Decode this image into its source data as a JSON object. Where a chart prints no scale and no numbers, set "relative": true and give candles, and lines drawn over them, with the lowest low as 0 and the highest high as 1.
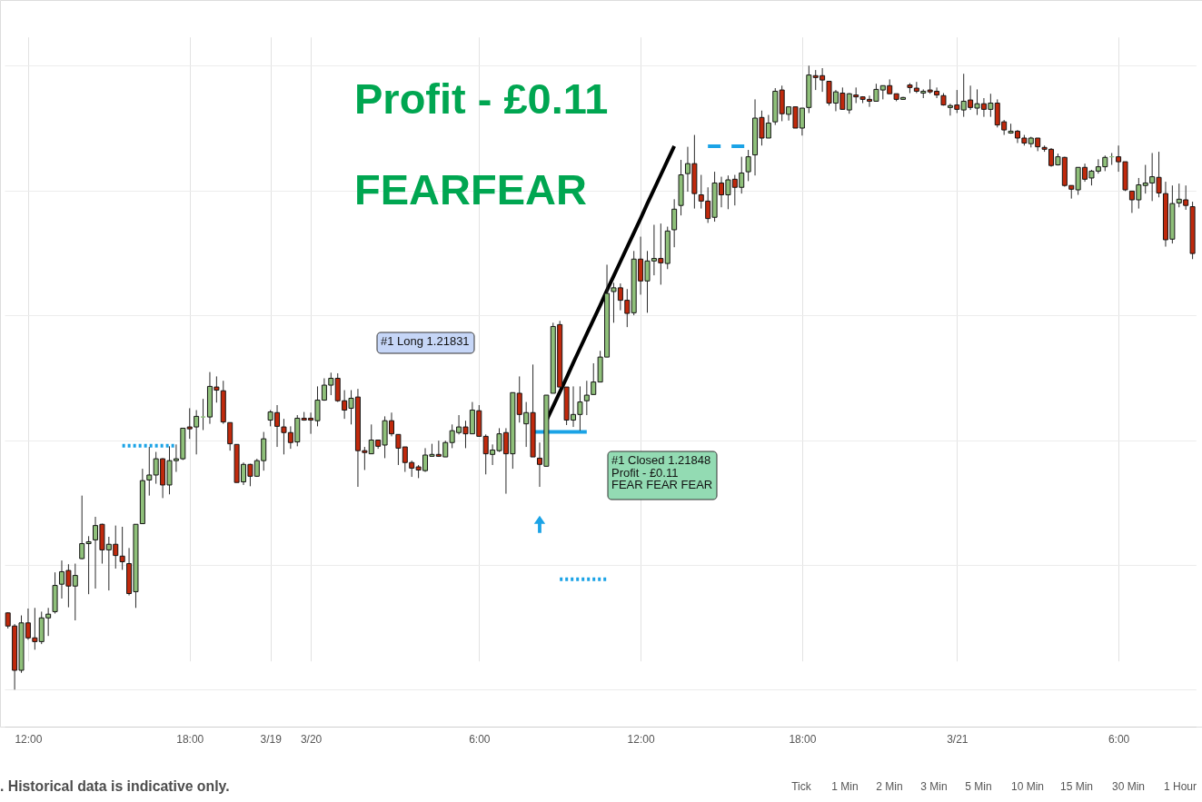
{
  "chart_data": {
    "type": "candlestick",
    "relative": true,
    "grid": true,
    "tick_labels": "x",
    "categories": [
      null,
      null,
      null,
      "12:00",
      null,
      null,
      null,
      null,
      null,
      null,
      null,
      null,
      null,
      null,
      null,
      null,
      null,
      null,
      null,
      null,
      null,
      null,
      null,
      null,
      null,
      null,
      null,
      "18:00",
      null,
      null,
      null,
      null,
      null,
      null,
      null,
      null,
      null,
      null,
      null,
      "3/19",
      null,
      null,
      null,
      null,
      null,
      "3/20",
      null,
      null,
      null,
      null,
      null,
      null,
      null,
      null,
      null,
      null,
      null,
      null,
      null,
      null,
      null,
      null,
      null,
      null,
      null,
      null,
      null,
      null,
      null,
      null,
      "6:00",
      null,
      null,
      null,
      null,
      null,
      null,
      null,
      null,
      null,
      null,
      null,
      null,
      null,
      null,
      null,
      null,
      null,
      null,
      null,
      null,
      null,
      null,
      null,
      "12:00",
      null,
      null,
      null,
      null,
      null,
      null,
      null,
      null,
      null,
      null,
      null,
      null,
      null,
      null,
      null,
      null,
      null,
      null,
      null,
      null,
      null,
      null,
      null,
      "18:00",
      null,
      null,
      null,
      null,
      null,
      null,
      null,
      null,
      null,
      null,
      null,
      null,
      null,
      null,
      null,
      null,
      null,
      null,
      null,
      null,
      null,
      null,
      "3/21",
      null,
      null,
      null,
      null,
      null,
      null,
      null,
      null,
      null,
      null,
      null,
      null,
      null,
      null,
      null,
      null,
      null,
      null,
      null,
      null,
      null,
      null,
      null,
      "6:00",
      null,
      null,
      null,
      null,
      null,
      null,
      null,
      null,
      null,
      null,
      null
    ],
    "ohlc": [
      [
        0.123,
        0.124,
        0.098,
        0.102
      ],
      [
        0.102,
        0.105,
        0.0,
        0.031
      ],
      [
        0.031,
        0.119,
        0.027,
        0.107
      ],
      [
        0.107,
        0.13,
        0.08,
        0.083
      ],
      [
        0.083,
        0.131,
        0.064,
        0.077
      ],
      [
        0.077,
        0.125,
        0.073,
        0.115
      ],
      [
        0.115,
        0.131,
        0.086,
        0.121
      ],
      [
        0.125,
        0.188,
        0.122,
        0.167
      ],
      [
        0.169,
        0.207,
        0.146,
        0.189
      ],
      [
        0.191,
        0.201,
        0.132,
        0.166
      ],
      [
        0.166,
        0.202,
        0.111,
        0.183
      ],
      [
        0.21,
        0.311,
        0.209,
        0.234
      ],
      [
        0.234,
        0.246,
        0.153,
        0.237
      ],
      [
        0.24,
        0.277,
        0.162,
        0.263
      ],
      [
        0.265,
        0.266,
        0.202,
        0.224
      ],
      [
        0.224,
        0.245,
        0.159,
        0.233
      ],
      [
        0.233,
        0.263,
        0.194,
        0.215
      ],
      [
        0.214,
        0.261,
        0.192,
        0.205
      ],
      [
        0.202,
        0.227,
        0.151,
        0.154
      ],
      [
        0.157,
        0.265,
        0.131,
        0.265
      ],
      [
        0.266,
        0.354,
        0.266,
        0.335
      ],
      [
        0.336,
        0.389,
        0.311,
        0.344
      ],
      [
        0.344,
        0.381,
        0.33,
        0.37
      ],
      [
        0.37,
        0.371,
        0.307,
        0.328
      ],
      [
        0.328,
        0.39,
        0.313,
        0.367
      ],
      [
        0.367,
        0.393,
        0.349,
        0.37
      ],
      [
        0.37,
        0.419,
        0.368,
        0.419
      ],
      [
        0.421,
        0.451,
        0.402,
        0.418
      ],
      [
        0.421,
        0.448,
        0.377,
        0.438
      ],
      [
        0.437,
        0.466,
        0.416,
        0.437
      ],
      [
        0.437,
        0.509,
        0.426,
        0.486
      ],
      [
        0.485,
        0.502,
        0.46,
        0.48
      ],
      [
        0.479,
        0.495,
        0.426,
        0.429
      ],
      [
        0.428,
        0.428,
        0.383,
        0.394
      ],
      [
        0.393,
        0.393,
        0.332,
        0.332
      ],
      [
        0.333,
        0.364,
        0.328,
        0.361
      ],
      [
        0.361,
        0.362,
        0.326,
        0.342
      ],
      [
        0.342,
        0.37,
        0.341,
        0.367
      ],
      [
        0.367,
        0.413,
        0.351,
        0.402
      ],
      [
        0.432,
        0.448,
        0.422,
        0.445
      ],
      [
        0.444,
        0.456,
        0.389,
        0.422
      ],
      [
        0.421,
        0.434,
        0.377,
        0.412
      ],
      [
        0.412,
        0.422,
        0.386,
        0.396
      ],
      [
        0.397,
        0.44,
        0.39,
        0.435
      ],
      [
        0.435,
        0.445,
        0.431,
        0.432
      ],
      [
        0.435,
        0.444,
        0.41,
        0.432
      ],
      [
        0.431,
        0.486,
        0.422,
        0.464
      ],
      [
        0.464,
        0.499,
        0.463,
        0.488
      ],
      [
        0.488,
        0.508,
        0.472,
        0.499
      ],
      [
        0.499,
        0.507,
        0.461,
        0.463
      ],
      [
        0.463,
        0.48,
        0.434,
        0.448
      ],
      [
        0.451,
        0.48,
        0.425,
        0.467
      ],
      [
        0.469,
        0.482,
        0.325,
        0.383
      ],
      [
        0.383,
        0.389,
        0.352,
        0.38
      ],
      [
        0.378,
        0.425,
        0.378,
        0.4
      ],
      [
        0.4,
        0.4,
        0.386,
        0.39
      ],
      [
        0.392,
        0.438,
        0.371,
        0.431
      ],
      [
        0.431,
        0.444,
        0.406,
        0.41
      ],
      [
        0.409,
        0.409,
        0.36,
        0.387
      ],
      [
        0.389,
        0.389,
        0.349,
        0.364
      ],
      [
        0.364,
        0.367,
        0.341,
        0.355
      ],
      [
        0.357,
        0.36,
        0.339,
        0.352
      ],
      [
        0.351,
        0.387,
        0.349,
        0.376
      ],
      [
        0.374,
        0.394,
        0.374,
        0.377
      ],
      [
        0.377,
        0.399,
        0.373,
        0.374
      ],
      [
        0.373,
        0.399,
        0.373,
        0.396
      ],
      [
        0.396,
        0.425,
        0.387,
        0.415
      ],
      [
        0.412,
        0.44,
        0.409,
        0.421
      ],
      [
        0.421,
        0.431,
        0.387,
        0.41
      ],
      [
        0.41,
        0.461,
        0.41,
        0.448
      ],
      [
        0.447,
        0.456,
        0.406,
        0.406
      ],
      [
        0.406,
        0.409,
        0.345,
        0.378
      ],
      [
        0.377,
        0.393,
        0.36,
        0.384
      ],
      [
        0.383,
        0.419,
        0.381,
        0.41
      ],
      [
        0.412,
        0.419,
        0.314,
        0.378
      ],
      [
        0.378,
        0.476,
        0.354,
        0.476
      ],
      [
        0.475,
        0.502,
        0.428,
        0.441
      ],
      [
        0.426,
        0.461,
        0.389,
        0.444
      ],
      [
        0.444,
        0.521,
        0.373,
        0.373
      ],
      [
        0.371,
        0.396,
        0.325,
        0.361
      ],
      [
        0.358,
        0.472,
        0.358,
        0.472
      ],
      [
        0.475,
        0.588,
        0.475,
        0.582
      ],
      [
        0.585,
        0.591,
        0.485,
        0.485
      ],
      [
        0.485,
        0.485,
        0.424,
        0.432
      ],
      [
        0.432,
        0.486,
        0.421,
        0.441
      ],
      [
        0.441,
        0.486,
        0.415,
        0.461
      ],
      [
        0.463,
        0.495,
        0.44,
        0.472
      ],
      [
        0.473,
        0.523,
        0.473,
        0.493
      ],
      [
        0.493,
        0.543,
        0.493,
        0.533
      ],
      [
        0.533,
        0.681,
        0.533,
        0.635
      ],
      [
        0.638,
        0.652,
        0.588,
        0.644
      ],
      [
        0.644,
        0.651,
        0.608,
        0.624
      ],
      [
        0.624,
        0.642,
        0.581,
        0.603
      ],
      [
        0.604,
        0.703,
        0.6,
        0.69
      ],
      [
        0.69,
        0.726,
        0.633,
        0.655
      ],
      [
        0.655,
        0.703,
        0.604,
        0.687
      ],
      [
        0.687,
        0.745,
        0.664,
        0.691
      ],
      [
        0.691,
        0.747,
        0.649,
        0.684
      ],
      [
        0.683,
        0.742,
        0.674,
        0.735
      ],
      [
        0.737,
        0.786,
        0.709,
        0.77
      ],
      [
        0.776,
        0.849,
        0.76,
        0.825
      ],
      [
        0.827,
        0.87,
        0.798,
        0.843
      ],
      [
        0.843,
        0.889,
        0.771,
        0.795
      ],
      [
        0.793,
        0.825,
        0.771,
        0.783
      ],
      [
        0.783,
        0.805,
        0.748,
        0.755
      ],
      [
        0.757,
        0.83,
        0.75,
        0.812
      ],
      [
        0.812,
        0.822,
        0.773,
        0.793
      ],
      [
        0.793,
        0.824,
        0.77,
        0.817
      ],
      [
        0.818,
        0.825,
        0.776,
        0.805
      ],
      [
        0.805,
        0.854,
        0.795,
        0.828
      ],
      [
        0.83,
        0.865,
        0.815,
        0.854
      ],
      [
        0.857,
        0.946,
        0.824,
        0.916
      ],
      [
        0.917,
        0.928,
        0.872,
        0.884
      ],
      [
        0.884,
        0.921,
        0.884,
        0.908
      ],
      [
        0.91,
        0.964,
        0.905,
        0.959
      ],
      [
        0.961,
        0.968,
        0.911,
        0.923
      ],
      [
        0.922,
        0.934,
        0.912,
        0.934
      ],
      [
        0.934,
        0.934,
        0.9,
        0.9
      ],
      [
        0.9,
        0.932,
        0.888,
        0.932
      ],
      [
        0.933,
        1.0,
        0.924,
        0.985
      ],
      [
        0.984,
        0.993,
        0.961,
        0.981
      ],
      [
        0.984,
        0.996,
        0.958,
        0.977
      ],
      [
        0.975,
        0.975,
        0.936,
        0.94
      ],
      [
        0.94,
        0.961,
        0.927,
        0.958
      ],
      [
        0.956,
        0.965,
        0.93,
        0.93
      ],
      [
        0.929,
        0.956,
        0.923,
        0.955
      ],
      [
        0.953,
        0.965,
        0.94,
        0.95
      ],
      [
        0.95,
        0.951,
        0.94,
        0.946
      ],
      [
        0.946,
        0.952,
        0.934,
        0.943
      ],
      [
        0.943,
        0.971,
        0.943,
        0.962
      ],
      [
        0.961,
        0.968,
        0.946,
        0.968
      ],
      [
        0.968,
        0.978,
        0.955,
        0.955
      ],
      [
        0.955,
        0.955,
        0.943,
        0.946
      ],
      [
        0.946,
        0.95,
        0.946,
        0.949
      ],
      [
        0.969,
        0.972,
        0.956,
        0.965
      ],
      [
        0.964,
        0.974,
        0.956,
        0.959
      ],
      [
        0.956,
        0.962,
        0.948,
        0.959
      ],
      [
        0.961,
        0.978,
        0.955,
        0.958
      ],
      [
        0.959,
        0.965,
        0.948,
        0.953
      ],
      [
        0.952,
        0.956,
        0.936,
        0.937
      ],
      [
        0.933,
        0.939,
        0.92,
        0.936
      ],
      [
        0.937,
        0.961,
        0.924,
        0.93
      ],
      [
        0.929,
        0.987,
        0.918,
        0.943
      ],
      [
        0.945,
        0.968,
        0.929,
        0.933
      ],
      [
        0.932,
        0.962,
        0.921,
        0.939
      ],
      [
        0.939,
        0.948,
        0.918,
        0.93
      ],
      [
        0.93,
        0.955,
        0.918,
        0.94
      ],
      [
        0.94,
        0.946,
        0.901,
        0.905
      ],
      [
        0.91,
        0.913,
        0.889,
        0.897
      ],
      [
        0.892,
        0.907,
        0.891,
        0.895
      ],
      [
        0.895,
        0.897,
        0.876,
        0.884
      ],
      [
        0.884,
        0.889,
        0.872,
        0.876
      ],
      [
        0.875,
        0.886,
        0.869,
        0.884
      ],
      [
        0.884,
        0.884,
        0.863,
        0.87
      ],
      [
        0.869,
        0.872,
        0.862,
        0.866
      ],
      [
        0.866,
        0.868,
        0.838,
        0.84
      ],
      [
        0.841,
        0.859,
        0.84,
        0.854
      ],
      [
        0.853,
        0.854,
        0.806,
        0.808
      ],
      [
        0.808,
        0.808,
        0.787,
        0.802
      ],
      [
        0.801,
        0.837,
        0.793,
        0.837
      ],
      [
        0.837,
        0.843,
        0.814,
        0.818
      ],
      [
        0.82,
        0.833,
        0.808,
        0.831
      ],
      [
        0.831,
        0.85,
        0.827,
        0.838
      ],
      [
        0.838,
        0.856,
        0.831,
        0.853
      ],
      [
        0.854,
        0.86,
        0.841,
        0.854
      ],
      [
        0.854,
        0.872,
        0.83,
        0.846
      ],
      [
        0.846,
        0.846,
        0.799,
        0.801
      ],
      [
        0.799,
        0.799,
        0.764,
        0.785
      ],
      [
        0.785,
        0.82,
        0.771,
        0.809
      ],
      [
        0.808,
        0.841,
        0.795,
        0.812
      ],
      [
        0.812,
        0.86,
        0.783,
        0.822
      ],
      [
        0.821,
        0.862,
        0.789,
        0.796
      ],
      [
        0.795,
        0.814,
        0.71,
        0.721
      ],
      [
        0.722,
        0.808,
        0.715,
        0.779
      ],
      [
        0.78,
        0.811,
        0.773,
        0.786
      ],
      [
        0.785,
        0.808,
        0.769,
        0.776
      ],
      [
        0.774,
        0.782,
        0.69,
        0.699
      ]
    ],
    "colors": [
      "#c0290c",
      "#c0290c",
      "#8fc07a",
      "#c0290c",
      "#c0290c",
      "#8fc07a",
      "#8fc07a",
      "#8fc07a",
      "#8fc07a",
      "#c0290c",
      "#8fc07a",
      "#8fc07a",
      "#8fc07a",
      "#8fc07a",
      "#c0290c",
      "#8fc07a",
      "#c0290c",
      "#c0290c",
      "#c0290c",
      "#8fc07a",
      "#8fc07a",
      "#8fc07a",
      "#8fc07a",
      "#c0290c",
      "#8fc07a",
      "#8fc07a",
      "#8fc07a",
      "#c0290c",
      "#8fc07a",
      "#8fc07a",
      "#8fc07a",
      "#c0290c",
      "#c0290c",
      "#c0290c",
      "#c0290c",
      "#8fc07a",
      "#c0290c",
      "#8fc07a",
      "#8fc07a",
      "#8fc07a",
      "#c0290c",
      "#c0290c",
      "#c0290c",
      "#8fc07a",
      "#c0290c",
      "#c0290c",
      "#8fc07a",
      "#8fc07a",
      "#8fc07a",
      "#c0290c",
      "#c0290c",
      "#8fc07a",
      "#c0290c",
      "#c0290c",
      "#8fc07a",
      "#c0290c",
      "#8fc07a",
      "#c0290c",
      "#c0290c",
      "#c0290c",
      "#c0290c",
      "#c0290c",
      "#8fc07a",
      "#8fc07a",
      "#c0290c",
      "#8fc07a",
      "#8fc07a",
      "#8fc07a",
      "#c0290c",
      "#8fc07a",
      "#c0290c",
      "#c0290c",
      "#8fc07a",
      "#8fc07a",
      "#c0290c",
      "#8fc07a",
      "#c0290c",
      "#8fc07a",
      "#c0290c",
      "#c0290c",
      "#8fc07a",
      "#8fc07a",
      "#c0290c",
      "#c0290c",
      "#8fc07a",
      "#8fc07a",
      "#8fc07a",
      "#8fc07a",
      "#8fc07a",
      "#8fc07a",
      "#8fc07a",
      "#c0290c",
      "#c0290c",
      "#8fc07a",
      "#c0290c",
      "#8fc07a",
      "#8fc07a",
      "#c0290c",
      "#8fc07a",
      "#8fc07a",
      "#8fc07a",
      "#8fc07a",
      "#c0290c",
      "#c0290c",
      "#c0290c",
      "#8fc07a",
      "#c0290c",
      "#8fc07a",
      "#c0290c",
      "#8fc07a",
      "#8fc07a",
      "#8fc07a",
      "#c0290c",
      "#8fc07a",
      "#8fc07a",
      "#c0290c",
      "#8fc07a",
      "#c0290c",
      "#8fc07a",
      "#8fc07a",
      "#c0290c",
      "#c0290c",
      "#c0290c",
      "#8fc07a",
      "#c0290c",
      "#8fc07a",
      "#c0290c",
      "#c0290c",
      "#c0290c",
      "#8fc07a",
      "#8fc07a",
      "#c0290c",
      "#c0290c",
      "#8fc07a",
      "#c0290c",
      "#c0290c",
      "#8fc07a",
      "#c0290c",
      "#c0290c",
      "#c0290c",
      "#8fc07a",
      "#c0290c",
      "#8fc07a",
      "#c0290c",
      "#8fc07a",
      "#c0290c",
      "#8fc07a",
      "#c0290c",
      "#c0290c",
      "#8fc07a",
      "#c0290c",
      "#c0290c",
      "#8fc07a",
      "#c0290c",
      "#c0290c",
      "#c0290c",
      "#8fc07a",
      "#c0290c",
      "#c0290c",
      "#8fc07a",
      "#c0290c",
      "#8fc07a",
      "#8fc07a",
      "#8fc07a",
      "#8fc07a",
      "#c0290c",
      "#c0290c",
      "#c0290c",
      "#8fc07a",
      "#8fc07a",
      "#8fc07a",
      "#c0290c",
      "#c0290c",
      "#8fc07a",
      "#8fc07a",
      "#c0290c",
      "#c0290c"
    ],
    "series": [
      {
        "type": "line",
        "color": "#000000",
        "values": [
          null,
          null,
          null,
          null,
          null,
          null,
          null,
          null,
          null,
          null,
          null,
          null,
          null,
          null,
          null,
          null,
          null,
          null,
          null,
          null,
          null,
          null,
          null,
          null,
          null,
          null,
          null,
          null,
          null,
          null,
          null,
          null,
          null,
          null,
          null,
          null,
          null,
          null,
          null,
          null,
          null,
          null,
          null,
          null,
          null,
          null,
          null,
          null,
          null,
          null,
          null,
          null,
          null,
          null,
          null,
          null,
          null,
          null,
          null,
          null,
          null,
          null,
          null,
          null,
          null,
          null,
          null,
          null,
          null,
          null,
          null,
          null,
          null,
          null,
          null,
          null,
          null,
          null,
          null,
          null,
          0.431,
          0.454,
          0.477,
          0.5,
          0.524,
          0.547,
          0.57,
          0.593,
          0.616,
          0.64,
          0.663,
          0.686,
          0.709,
          0.732,
          0.755,
          0.779,
          0.802,
          0.825,
          0.848,
          0.871,
          null,
          null,
          null,
          null,
          null,
          null,
          null,
          null,
          null,
          null,
          null,
          null,
          null,
          null,
          null,
          null,
          null,
          null,
          null,
          null,
          null,
          null,
          null,
          null,
          null,
          null,
          null,
          null,
          null,
          null,
          null,
          null,
          null,
          null,
          null,
          null,
          null,
          null,
          null,
          null,
          null,
          null,
          null,
          null,
          null,
          null,
          null,
          null,
          null,
          null,
          null,
          null,
          null,
          null,
          null,
          null,
          null,
          null,
          null,
          null,
          null,
          null,
          null,
          null,
          null,
          null,
          null,
          null,
          null,
          null,
          null,
          null,
          null,
          null,
          null,
          null,
          null
        ]
      },
      {
        "type": "line",
        "color": "#1ba3e6",
        "line_style": "dotted",
        "values": [
          null,
          null,
          null,
          null,
          null,
          null,
          null,
          null,
          null,
          null,
          null,
          null,
          null,
          null,
          null,
          null,
          null,
          0.391,
          0.391,
          0.391,
          0.391,
          0.391,
          0.391,
          0.391,
          0.391,
          0.391,
          null,
          null,
          null,
          null,
          null,
          null,
          null,
          null,
          null,
          null,
          null,
          null,
          null,
          null,
          null,
          null,
          null,
          null,
          null,
          null,
          null,
          null,
          null,
          null,
          null,
          null,
          null,
          null,
          null,
          null,
          null,
          null,
          null,
          null,
          null,
          null,
          null,
          null,
          null,
          null,
          null,
          null,
          null,
          null,
          null,
          null,
          null,
          null,
          null,
          null,
          null,
          null,
          null,
          null,
          null,
          null,
          null,
          null,
          null,
          null,
          null,
          null,
          null,
          null,
          null,
          null,
          null,
          null,
          null,
          null,
          null,
          null,
          null,
          null,
          null,
          null,
          null,
          null,
          null,
          null,
          null,
          null,
          null,
          null,
          null,
          null,
          null,
          null,
          null,
          null,
          null,
          null,
          null,
          null,
          null,
          null,
          null,
          null,
          null,
          null,
          null,
          null,
          null,
          null,
          null,
          null,
          null,
          null,
          null,
          null,
          null,
          null,
          null,
          null,
          null,
          null,
          null,
          null,
          null,
          null,
          null,
          null,
          null,
          null,
          null,
          null,
          null,
          null,
          null,
          null,
          null,
          null,
          null,
          null,
          null,
          null,
          null,
          null,
          null,
          null,
          null,
          null,
          null,
          null,
          null,
          null,
          null,
          null,
          null,
          null,
          null
        ]
      },
      {
        "type": "line",
        "color": "#1ba3e6",
        "line_style": "solid",
        "values": [
          null,
          null,
          null,
          null,
          null,
          null,
          null,
          null,
          null,
          null,
          null,
          null,
          null,
          null,
          null,
          null,
          null,
          null,
          null,
          null,
          null,
          null,
          null,
          null,
          null,
          null,
          null,
          null,
          null,
          null,
          null,
          null,
          null,
          null,
          null,
          null,
          null,
          null,
          null,
          null,
          null,
          null,
          null,
          null,
          null,
          null,
          null,
          null,
          null,
          null,
          null,
          null,
          null,
          null,
          null,
          null,
          null,
          null,
          null,
          null,
          null,
          null,
          null,
          null,
          null,
          null,
          null,
          null,
          null,
          null,
          null,
          null,
          null,
          null,
          null,
          null,
          null,
          null,
          0.413,
          0.413,
          0.413,
          0.413,
          0.413,
          0.413,
          0.413,
          0.413,
          0.413,
          null,
          null,
          null,
          null,
          null,
          null,
          null,
          null,
          null,
          null,
          null,
          null,
          null,
          null,
          null,
          null,
          null,
          null,
          null,
          null,
          null,
          null,
          null,
          null,
          null,
          null,
          null,
          null,
          null,
          null,
          null,
          null,
          null,
          null,
          null,
          null,
          null,
          null,
          null,
          null,
          null,
          null,
          null,
          null,
          null,
          null,
          null,
          null,
          null,
          null,
          null,
          null,
          null,
          null,
          null,
          null,
          null,
          null,
          null,
          null,
          null,
          null,
          null,
          null,
          null,
          null,
          null,
          null,
          null,
          null,
          null,
          null,
          null,
          null,
          null,
          null,
          null,
          null,
          null,
          null,
          null,
          null,
          null,
          null,
          null,
          null,
          null,
          null,
          null,
          null
        ]
      },
      {
        "type": "line",
        "color": "#1ba3e6",
        "line_style": "dotted",
        "values": [
          null,
          null,
          null,
          null,
          null,
          null,
          null,
          null,
          null,
          null,
          null,
          null,
          null,
          null,
          null,
          null,
          null,
          null,
          null,
          null,
          null,
          null,
          null,
          null,
          null,
          null,
          null,
          null,
          null,
          null,
          null,
          null,
          null,
          null,
          null,
          null,
          null,
          null,
          null,
          null,
          null,
          null,
          null,
          null,
          null,
          null,
          null,
          null,
          null,
          null,
          null,
          null,
          null,
          null,
          null,
          null,
          null,
          null,
          null,
          null,
          null,
          null,
          null,
          null,
          null,
          null,
          null,
          null,
          null,
          null,
          null,
          null,
          null,
          null,
          null,
          null,
          null,
          null,
          null,
          null,
          null,
          null,
          0.177,
          0.177,
          0.177,
          0.177,
          0.177,
          0.177,
          0.177,
          0.177,
          null,
          null,
          null,
          null,
          null,
          null,
          null,
          null,
          null,
          null,
          null,
          null,
          null,
          null,
          null,
          null,
          null,
          null,
          null,
          null,
          null,
          null,
          null,
          null,
          null,
          null,
          null,
          null,
          null,
          null,
          null,
          null,
          null,
          null,
          null,
          null,
          null,
          null,
          null,
          null,
          null,
          null,
          null,
          null,
          null,
          null,
          null,
          null,
          null,
          null,
          null,
          null,
          null,
          null,
          null,
          null,
          null,
          null,
          null,
          null,
          null,
          null,
          null,
          null,
          null,
          null,
          null,
          null,
          null,
          null,
          null,
          null,
          null,
          null,
          null,
          null,
          null,
          null,
          null,
          null,
          null,
          null,
          null,
          null,
          null,
          null,
          null
        ]
      },
      {
        "type": "line",
        "color": "#1ba3e6",
        "line_style": "dashed",
        "values": [
          null,
          null,
          null,
          null,
          null,
          null,
          null,
          null,
          null,
          null,
          null,
          null,
          null,
          null,
          null,
          null,
          null,
          null,
          null,
          null,
          null,
          null,
          null,
          null,
          null,
          null,
          null,
          null,
          null,
          null,
          null,
          null,
          null,
          null,
          null,
          null,
          null,
          null,
          null,
          null,
          null,
          null,
          null,
          null,
          null,
          null,
          null,
          null,
          null,
          null,
          null,
          null,
          null,
          null,
          null,
          null,
          null,
          null,
          null,
          null,
          null,
          null,
          null,
          null,
          null,
          null,
          null,
          null,
          null,
          null,
          null,
          null,
          null,
          null,
          null,
          null,
          null,
          null,
          null,
          null,
          null,
          null,
          null,
          null,
          null,
          null,
          null,
          null,
          null,
          null,
          null,
          null,
          null,
          null,
          null,
          null,
          null,
          null,
          null,
          null,
          null,
          null,
          null,
          null,
          0.871,
          0.871,
          0.871,
          0.871,
          0.871,
          0.871,
          0.871,
          null,
          null,
          null,
          null,
          null,
          null,
          null,
          null,
          null,
          null,
          null,
          null,
          null,
          null,
          null,
          null,
          null,
          null,
          null,
          null,
          null,
          null,
          null,
          null,
          null,
          null,
          null,
          null,
          null,
          null,
          null,
          null,
          null,
          null,
          null,
          null,
          null,
          null,
          null,
          null,
          null,
          null,
          null,
          null,
          null,
          null,
          null,
          null,
          null,
          null,
          null,
          null,
          null,
          null,
          null,
          null,
          null,
          null,
          null,
          null,
          null,
          null,
          null,
          null,
          null,
          null
        ]
      },
      {
        "type": "scatter",
        "color": "#1ba3e6",
        "marker": "triangle",
        "values": [
          null,
          null,
          null,
          null,
          null,
          null,
          null,
          null,
          null,
          null,
          null,
          null,
          null,
          null,
          null,
          null,
          null,
          null,
          null,
          null,
          null,
          null,
          null,
          null,
          null,
          null,
          null,
          null,
          null,
          null,
          null,
          null,
          null,
          null,
          null,
          null,
          null,
          null,
          null,
          null,
          null,
          null,
          null,
          null,
          null,
          null,
          null,
          null,
          null,
          null,
          null,
          null,
          null,
          null,
          null,
          null,
          null,
          null,
          null,
          null,
          null,
          null,
          null,
          null,
          null,
          null,
          null,
          null,
          null,
          null,
          null,
          null,
          null,
          null,
          null,
          null,
          null,
          null,
          null,
          0.265,
          null,
          null,
          null,
          null,
          null,
          null,
          null,
          null,
          null,
          null,
          null,
          null,
          null,
          null,
          null,
          null,
          null,
          null,
          null,
          null,
          null,
          null,
          null,
          null,
          null,
          null,
          null,
          null,
          null,
          null,
          null,
          null,
          null,
          null,
          null,
          null,
          null,
          null,
          null,
          null,
          null,
          null,
          null,
          null,
          null,
          null,
          null,
          null,
          null,
          null,
          null,
          null,
          null,
          null,
          null,
          null,
          null,
          null,
          null,
          null,
          null,
          null,
          null,
          null,
          null,
          null,
          null,
          null,
          null,
          null,
          null,
          null,
          null,
          null,
          null,
          null,
          null,
          null,
          null,
          null,
          null,
          null,
          null,
          null,
          null,
          null,
          null,
          null,
          null,
          null,
          null,
          null,
          null,
          null,
          null,
          null,
          null
        ]
      }
    ],
    "annotations": [
      "Profit - £0.11",
      "FEARFEAR",
      "#1 Long 1.21831",
      "#1 Closed 1.21848\nProfit - £0.11\nFEAR FEAR FEAR",
      ". Historical data is indicative only.",
      "Tick",
      "1 Min",
      "2 Min",
      "3 Min",
      "5 Min",
      "10 Min",
      "15 Min",
      "30 Min",
      "1 Hour"
    ]
  }
}
